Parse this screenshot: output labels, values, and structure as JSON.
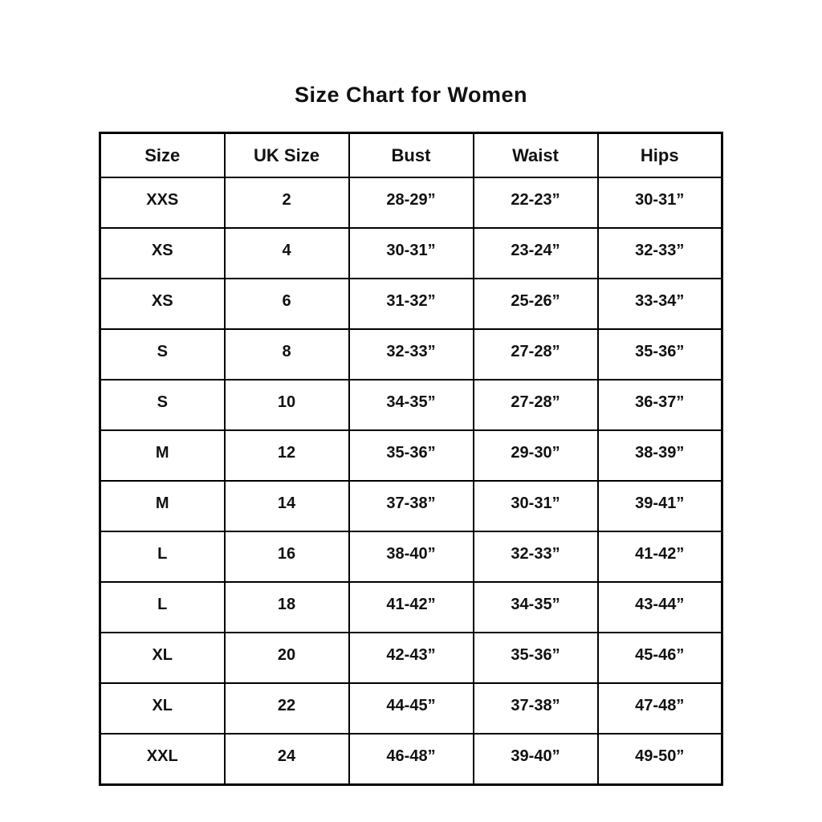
{
  "page": {
    "title": "Size Chart for Women"
  },
  "chart_data": {
    "type": "table",
    "title": "Size Chart for Women",
    "columns": [
      "Size",
      "UK Size",
      "Bust",
      "Waist",
      "Hips"
    ],
    "rows": [
      [
        "XXS",
        "2",
        "28-29”",
        "22-23”",
        "30-31”"
      ],
      [
        "XS",
        "4",
        "30-31”",
        "23-24”",
        "32-33”"
      ],
      [
        "XS",
        "6",
        "31-32”",
        "25-26”",
        "33-34”"
      ],
      [
        "S",
        "8",
        "32-33”",
        "27-28”",
        "35-36”"
      ],
      [
        "S",
        "10",
        "34-35”",
        "27-28”",
        "36-37”"
      ],
      [
        "M",
        "12",
        "35-36”",
        "29-30”",
        "38-39”"
      ],
      [
        "M",
        "14",
        "37-38”",
        "30-31”",
        "39-41”"
      ],
      [
        "L",
        "16",
        "38-40”",
        "32-33”",
        "41-42”"
      ],
      [
        "L",
        "18",
        "41-42”",
        "34-35”",
        "43-44”"
      ],
      [
        "XL",
        "20",
        "42-43”",
        "35-36”",
        "45-46”"
      ],
      [
        "XL",
        "22",
        "44-45”",
        "37-38”",
        "47-48”"
      ],
      [
        "XXL",
        "24",
        "46-48”",
        "39-40”",
        "49-50”"
      ]
    ],
    "layout": {
      "grid": "all-borders",
      "header_position": "top-row",
      "alignment": "center"
    }
  },
  "colors": {
    "background": "#ffffff",
    "text": "#111111",
    "border": "#000000"
  }
}
